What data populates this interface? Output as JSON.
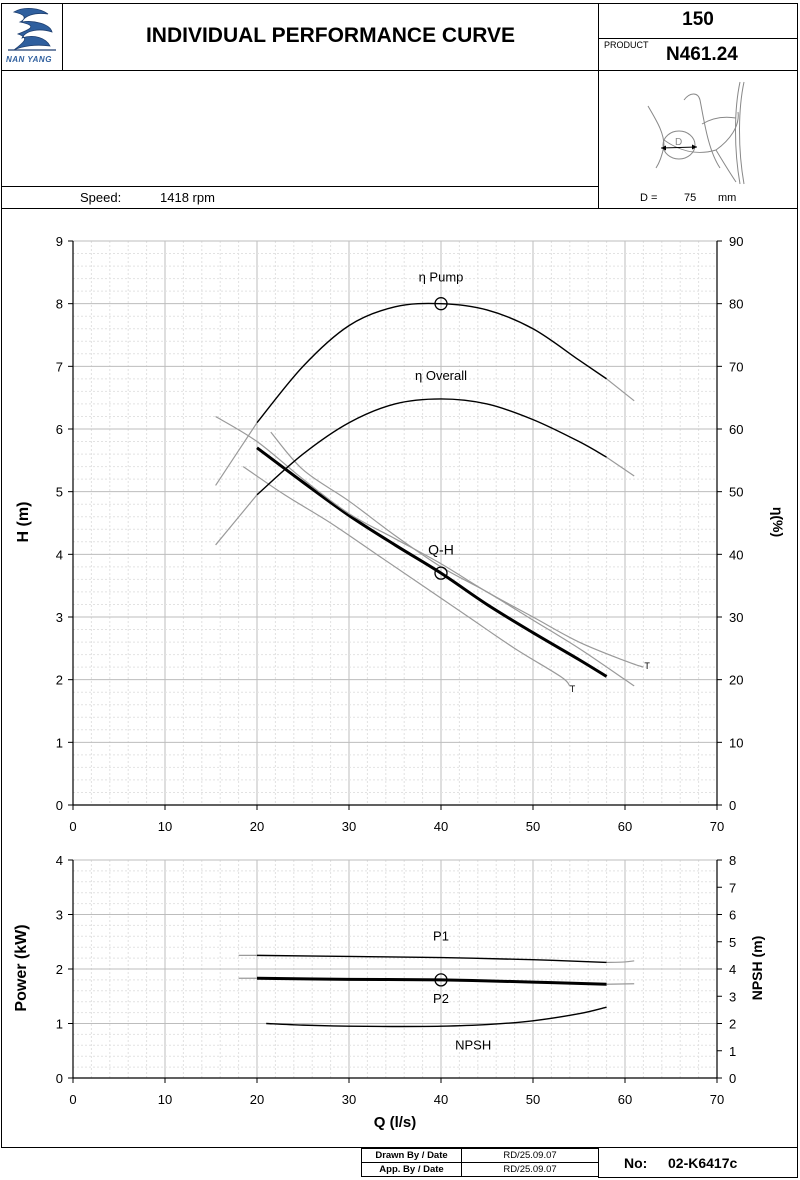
{
  "header": {
    "brand": "NAN YANG",
    "title": "INDIVIDUAL PERFORMANCE  CURVE",
    "model_top": "150",
    "product_label": "PRODUCT",
    "product_code": "N461.24",
    "speed_label": "Speed:",
    "speed_value": "1418 rpm",
    "impeller_label": "D =",
    "impeller_value": "75",
    "impeller_unit": "mm",
    "impeller_symbol": "D"
  },
  "footer": {
    "drawn_label": "Drawn By / Date",
    "drawn_value": "RD/25.09.07",
    "approved_label": "App. By / Date",
    "approved_value": "RD/25.09.07",
    "no_label": "No:",
    "no_value": "02-K6417c"
  },
  "chart_data": [
    {
      "type": "line",
      "xlabel": "",
      "ylabel": "H (m)",
      "y2label": "η(%)",
      "xlim": [
        0,
        70
      ],
      "ylim": [
        0,
        9
      ],
      "y2lim": [
        0,
        90
      ],
      "xticks": [
        "0",
        "10",
        "20",
        "30",
        "40",
        "50",
        "60",
        "70"
      ],
      "yticks": [
        "0",
        "1",
        "2",
        "3",
        "4",
        "5",
        "6",
        "7",
        "8",
        "9"
      ],
      "y2ticks": [
        "0",
        "10",
        "20",
        "30",
        "40",
        "50",
        "60",
        "70",
        "80",
        "90"
      ],
      "grid": true,
      "series": [
        {
          "name": "Q-H",
          "axis": "left",
          "weight": "bold",
          "x": [
            20,
            25,
            30,
            35,
            40,
            45,
            50,
            55,
            58
          ],
          "y": [
            5.7,
            5.15,
            4.62,
            4.15,
            3.7,
            3.2,
            2.75,
            2.32,
            2.05
          ]
        },
        {
          "name": "",
          "axis": "left",
          "weight": "limit",
          "x": [
            15.5,
            20,
            25,
            30,
            35,
            40,
            45,
            50,
            55,
            60,
            62
          ],
          "y": [
            6.2,
            5.8,
            5.2,
            4.65,
            4.25,
            3.85,
            3.4,
            3.0,
            2.6,
            2.3,
            2.2
          ]
        },
        {
          "name": "",
          "axis": "left",
          "weight": "limit",
          "x": [
            18.5,
            23,
            28,
            33,
            38,
            43,
            48,
            53,
            54
          ],
          "y": [
            5.4,
            4.95,
            4.5,
            4.0,
            3.5,
            3.0,
            2.5,
            2.05,
            1.9
          ]
        },
        {
          "name": "",
          "axis": "left",
          "weight": "limit",
          "x": [
            21.5,
            25,
            30,
            35,
            40,
            45,
            50,
            55,
            60,
            61
          ],
          "y": [
            5.95,
            5.35,
            4.85,
            4.3,
            3.8,
            3.4,
            2.95,
            2.5,
            2.0,
            1.9
          ]
        },
        {
          "name": "η Pump",
          "axis": "right",
          "weight": "normal",
          "x": [
            20,
            25,
            30,
            35,
            40,
            45,
            50,
            55,
            58
          ],
          "y": [
            61,
            70,
            76.5,
            79.5,
            80,
            79,
            76,
            71,
            68
          ]
        },
        {
          "name": "",
          "axis": "right",
          "weight": "limit",
          "x": [
            15.5,
            20
          ],
          "y": [
            51,
            61
          ]
        },
        {
          "name": "",
          "axis": "right",
          "weight": "limit",
          "x": [
            58,
            61
          ],
          "y": [
            68,
            64.5
          ]
        },
        {
          "name": "η Overall",
          "axis": "right",
          "weight": "normal",
          "x": [
            20,
            25,
            30,
            35,
            40,
            45,
            50,
            55,
            58
          ],
          "y": [
            49.5,
            56,
            61,
            64,
            64.8,
            64,
            61.5,
            58,
            55.5
          ]
        },
        {
          "name": "",
          "axis": "right",
          "weight": "limit",
          "x": [
            15.5,
            20
          ],
          "y": [
            41.5,
            49.5
          ]
        },
        {
          "name": "",
          "axis": "right",
          "weight": "limit",
          "x": [
            58,
            61
          ],
          "y": [
            55.5,
            52.5
          ]
        }
      ],
      "annotations": [
        {
          "text": "η Pump",
          "x": 40,
          "y": 8.35
        },
        {
          "text": "η Overall",
          "x": 40,
          "y": 6.78
        },
        {
          "text": "Q-H",
          "x": 40,
          "y": 4.0
        },
        {
          "text": "T",
          "x": 62.4,
          "y": 2.17
        },
        {
          "text": "T",
          "x": 54.3,
          "y": 1.8
        }
      ],
      "markers": [
        {
          "x": 40,
          "y": 8.0
        },
        {
          "x": 40,
          "y": 3.7
        }
      ]
    },
    {
      "type": "line",
      "xlabel": "Q (l/s)",
      "ylabel": "Power (kW)",
      "y2label": "NPSH (m)",
      "xlim": [
        0,
        70
      ],
      "ylim": [
        0,
        4
      ],
      "y2lim": [
        0,
        8
      ],
      "xticks": [
        "0",
        "10",
        "20",
        "30",
        "40",
        "50",
        "60",
        "70"
      ],
      "yticks": [
        "0",
        "1",
        "2",
        "3",
        "4"
      ],
      "y2ticks": [
        "0",
        "1",
        "2",
        "3",
        "4",
        "5",
        "6",
        "7",
        "8"
      ],
      "grid": true,
      "series": [
        {
          "name": "P1",
          "axis": "left",
          "weight": "normal",
          "x": [
            20,
            30,
            40,
            50,
            58
          ],
          "y": [
            2.25,
            2.23,
            2.21,
            2.17,
            2.12
          ]
        },
        {
          "name": "",
          "axis": "left",
          "weight": "limit",
          "x": [
            18,
            20
          ],
          "y": [
            2.25,
            2.25
          ]
        },
        {
          "name": "",
          "axis": "left",
          "weight": "limit",
          "x": [
            58,
            60,
            61
          ],
          "y": [
            2.12,
            2.13,
            2.15
          ]
        },
        {
          "name": "P2",
          "axis": "left",
          "weight": "bold",
          "x": [
            20,
            30,
            40,
            50,
            58
          ],
          "y": [
            1.83,
            1.81,
            1.8,
            1.76,
            1.72
          ]
        },
        {
          "name": "",
          "axis": "left",
          "weight": "limit",
          "x": [
            18,
            20
          ],
          "y": [
            1.83,
            1.83
          ]
        },
        {
          "name": "",
          "axis": "left",
          "weight": "limit",
          "x": [
            58,
            61
          ],
          "y": [
            1.72,
            1.73
          ]
        },
        {
          "name": "NPSH",
          "axis": "right",
          "weight": "normal",
          "x": [
            21,
            25,
            30,
            35,
            40,
            45,
            50,
            55,
            58
          ],
          "y": [
            2.0,
            1.94,
            1.9,
            1.89,
            1.9,
            1.96,
            2.1,
            2.36,
            2.6
          ]
        }
      ],
      "annotations": [
        {
          "text": "P1",
          "x": 40,
          "y": 2.52
        },
        {
          "text": "P2",
          "x": 40,
          "y": 1.38
        },
        {
          "text": "NPSH",
          "x": 43.5,
          "y": 0.52
        }
      ],
      "markers": [
        {
          "x": 40,
          "y": 1.8
        }
      ]
    }
  ]
}
